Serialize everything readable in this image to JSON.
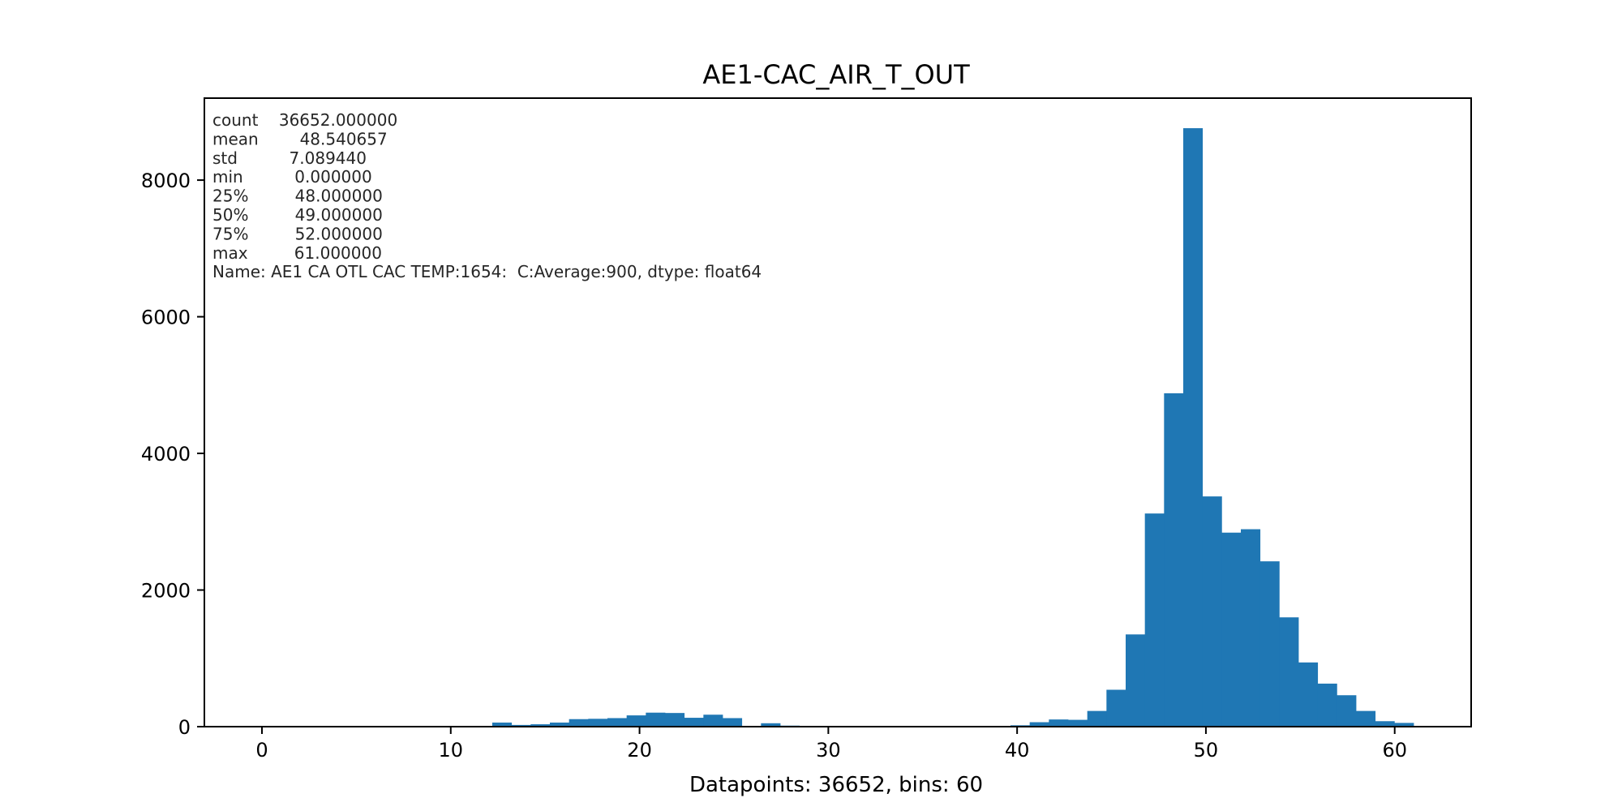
{
  "chart_data": {
    "type": "bar",
    "title": "AE1-CAC_AIR_T_OUT",
    "xlabel": "Datapoints: 36652, bins: 60",
    "ylabel": "",
    "xlim": [
      -3.05,
      64.05
    ],
    "ylim": [
      0,
      9200
    ],
    "xticks": [
      0,
      10,
      20,
      30,
      40,
      50,
      60
    ],
    "yticks": [
      0,
      2000,
      4000,
      6000,
      8000
    ],
    "bin_start": 0,
    "bin_width": 1.0166667,
    "bar_color": "#1f77b4",
    "grid": false,
    "values": [
      0,
      0,
      0,
      0,
      0,
      0,
      0,
      0,
      0,
      0,
      0,
      10,
      60,
      25,
      35,
      60,
      110,
      115,
      125,
      165,
      205,
      200,
      130,
      175,
      125,
      0,
      50,
      15,
      0,
      0,
      0,
      0,
      0,
      0,
      0,
      0,
      0,
      0,
      0,
      20,
      65,
      105,
      100,
      230,
      540,
      1350,
      3120,
      4880,
      8760,
      3370,
      2840,
      2890,
      2420,
      1600,
      940,
      630,
      460,
      230,
      80,
      55
    ],
    "stats_lines": [
      "count    36652.000000",
      "mean        48.540657",
      "std          7.089440",
      "min          0.000000",
      "25%         48.000000",
      "50%         49.000000",
      "75%         52.000000",
      "max         61.000000",
      "Name: AE1 CA OTL CAC TEMP:1654:  C:Average:900, dtype: float64"
    ]
  }
}
